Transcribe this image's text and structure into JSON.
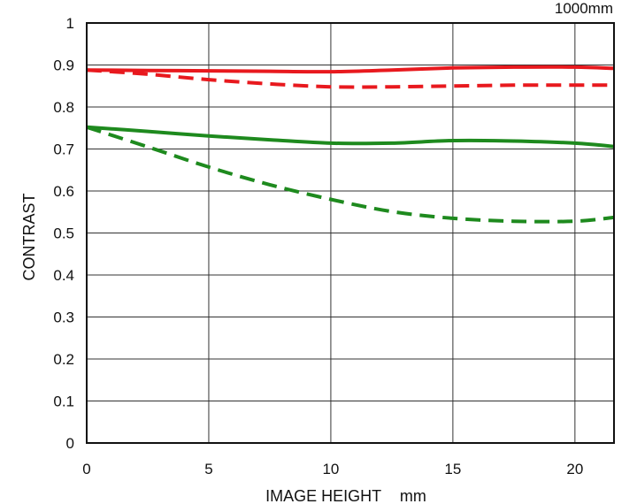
{
  "chart_data": {
    "type": "line",
    "title": "",
    "corner_label": "1000mm",
    "xlabel": "IMAGE HEIGHT",
    "xunit": "mm",
    "ylabel": "CONTRAST",
    "xlim": [
      0,
      21.6
    ],
    "ylim": [
      0,
      1
    ],
    "xticks": [
      0,
      5,
      10,
      15,
      20
    ],
    "yticks": [
      0,
      0.1,
      0.2,
      0.3,
      0.4,
      0.5,
      0.6,
      0.7,
      0.8,
      0.9,
      1
    ],
    "ytick_labels": [
      "0",
      "0.1",
      "0.2",
      "0.3",
      "0.4",
      "0.5",
      "0.6",
      "0.7",
      "0.8",
      "0.9",
      "1"
    ],
    "grid": true,
    "series": [
      {
        "color": "#e8191e",
        "style": "solid",
        "x": [
          0,
          2.5,
          5,
          7.5,
          10,
          12.5,
          15,
          17.5,
          20,
          21.6
        ],
        "values": [
          0.888,
          0.887,
          0.886,
          0.885,
          0.884,
          0.888,
          0.893,
          0.895,
          0.895,
          0.892
        ]
      },
      {
        "color": "#e8191e",
        "style": "dashed",
        "x": [
          0,
          2.5,
          5,
          7.5,
          10,
          12.5,
          15,
          17.5,
          20,
          21.6
        ],
        "values": [
          0.888,
          0.878,
          0.865,
          0.855,
          0.848,
          0.848,
          0.85,
          0.852,
          0.852,
          0.852
        ]
      },
      {
        "color": "#1e8a1e",
        "style": "solid",
        "x": [
          0,
          2.5,
          5,
          7.5,
          10,
          12.5,
          15,
          17.5,
          20,
          21.6
        ],
        "values": [
          0.752,
          0.742,
          0.731,
          0.722,
          0.714,
          0.714,
          0.72,
          0.719,
          0.714,
          0.706
        ]
      },
      {
        "color": "#1e8a1e",
        "style": "dashed",
        "x": [
          0,
          2.5,
          5,
          7.5,
          10,
          12.5,
          15,
          17.5,
          20,
          21.6
        ],
        "values": [
          0.752,
          0.705,
          0.657,
          0.615,
          0.58,
          0.551,
          0.535,
          0.528,
          0.528,
          0.537
        ]
      }
    ]
  }
}
